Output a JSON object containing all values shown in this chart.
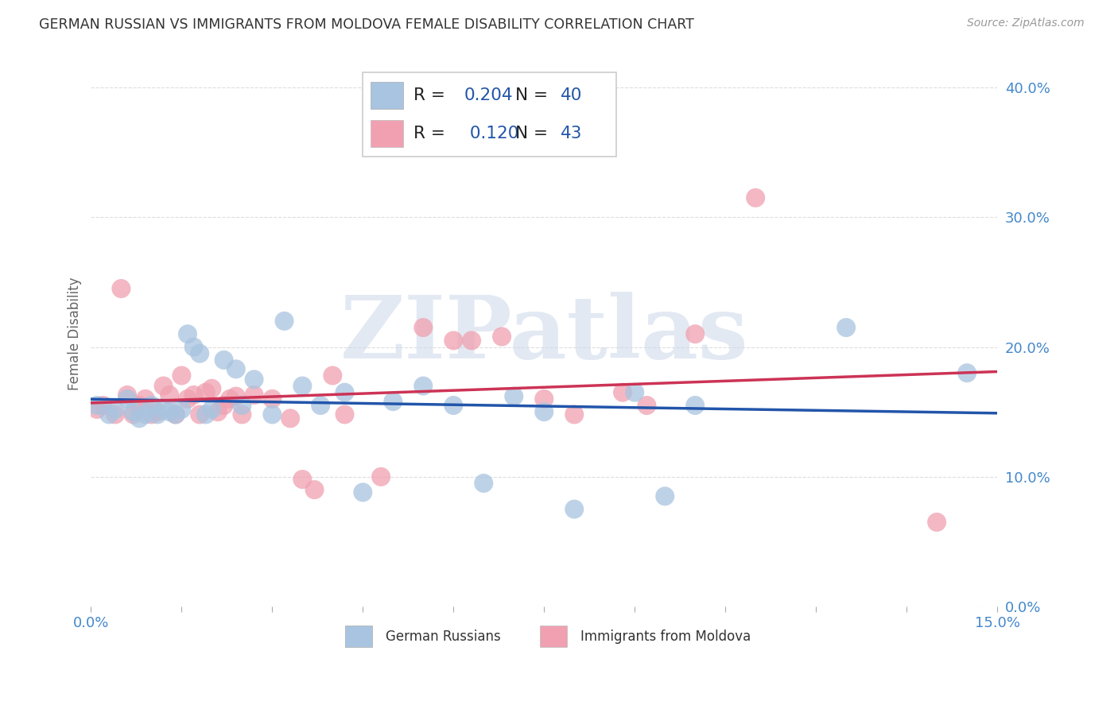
{
  "title": "GERMAN RUSSIAN VS IMMIGRANTS FROM MOLDOVA FEMALE DISABILITY CORRELATION CHART",
  "source": "Source: ZipAtlas.com",
  "ylabel": "Female Disability",
  "watermark": "ZIPatlas",
  "xlim": [
    0.0,
    0.15
  ],
  "ylim": [
    0.0,
    0.42
  ],
  "xtick_positions": [
    0.0,
    0.015,
    0.03,
    0.045,
    0.06,
    0.075,
    0.09,
    0.105,
    0.12,
    0.135,
    0.15
  ],
  "xtick_labels_show": {
    "0.0": "0.0%",
    "0.15": "15.0%"
  },
  "yticks": [
    0.0,
    0.1,
    0.2,
    0.3,
    0.4
  ],
  "blue_R": 0.204,
  "blue_N": 40,
  "pink_R": 0.12,
  "pink_N": 43,
  "blue_color": "#a8c4e0",
  "pink_color": "#f0a0b0",
  "blue_line_color": "#2255aa",
  "pink_line_color": "#cc3355",
  "legend_R_color": "#2255aa",
  "title_color": "#333333",
  "axis_tick_color": "#4488cc",
  "grid_color": "#dddddd",
  "blue_x": [
    0.001,
    0.003,
    0.004,
    0.006,
    0.007,
    0.008,
    0.009,
    0.01,
    0.011,
    0.012,
    0.013,
    0.014,
    0.015,
    0.016,
    0.017,
    0.018,
    0.019,
    0.02,
    0.022,
    0.024,
    0.025,
    0.027,
    0.03,
    0.032,
    0.035,
    0.038,
    0.042,
    0.045,
    0.05,
    0.055,
    0.06,
    0.065,
    0.07,
    0.075,
    0.08,
    0.09,
    0.095,
    0.1,
    0.125,
    0.145
  ],
  "blue_y": [
    0.155,
    0.148,
    0.152,
    0.16,
    0.15,
    0.145,
    0.148,
    0.155,
    0.148,
    0.152,
    0.15,
    0.148,
    0.152,
    0.21,
    0.2,
    0.195,
    0.148,
    0.152,
    0.19,
    0.183,
    0.155,
    0.175,
    0.148,
    0.22,
    0.17,
    0.155,
    0.165,
    0.088,
    0.158,
    0.17,
    0.155,
    0.095,
    0.162,
    0.15,
    0.075,
    0.165,
    0.085,
    0.155,
    0.215,
    0.18
  ],
  "pink_x": [
    0.001,
    0.002,
    0.004,
    0.005,
    0.006,
    0.007,
    0.008,
    0.009,
    0.01,
    0.011,
    0.012,
    0.013,
    0.014,
    0.015,
    0.016,
    0.017,
    0.018,
    0.019,
    0.02,
    0.021,
    0.022,
    0.023,
    0.024,
    0.025,
    0.027,
    0.03,
    0.033,
    0.035,
    0.037,
    0.04,
    0.042,
    0.048,
    0.055,
    0.06,
    0.063,
    0.068,
    0.075,
    0.08,
    0.088,
    0.092,
    0.1,
    0.11,
    0.14
  ],
  "pink_y": [
    0.152,
    0.155,
    0.148,
    0.245,
    0.163,
    0.148,
    0.155,
    0.16,
    0.148,
    0.15,
    0.17,
    0.163,
    0.148,
    0.178,
    0.16,
    0.163,
    0.148,
    0.165,
    0.168,
    0.15,
    0.155,
    0.16,
    0.162,
    0.148,
    0.163,
    0.16,
    0.145,
    0.098,
    0.09,
    0.178,
    0.148,
    0.1,
    0.215,
    0.205,
    0.205,
    0.208,
    0.16,
    0.148,
    0.165,
    0.155,
    0.21,
    0.315,
    0.065
  ]
}
